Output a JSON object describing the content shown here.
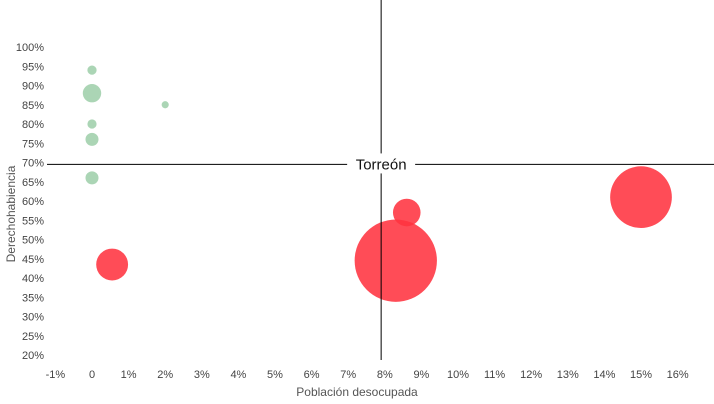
{
  "chart_data": {
    "type": "scatter",
    "title": "",
    "xlabel": "Población desocupada",
    "ylabel": "Derechohabiencia",
    "xlim": [
      -1,
      17
    ],
    "ylim": [
      20,
      100
    ],
    "x_ticks": [
      "-1%",
      "0",
      "1%",
      "2%",
      "3%",
      "4%",
      "5%",
      "6%",
      "7%",
      "8%",
      "9%",
      "10%",
      "11%",
      "12%",
      "13%",
      "14%",
      "15%",
      "16%"
    ],
    "y_ticks": [
      "20%",
      "25%",
      "30%",
      "35%",
      "40%",
      "45%",
      "50%",
      "55%",
      "60%",
      "65%",
      "70%",
      "75%",
      "80%",
      "85%",
      "90%",
      "95%",
      "100%"
    ],
    "reference_lines": {
      "x": 7.9,
      "y": 69.5,
      "label": "Torreón"
    },
    "series": [
      {
        "color": "#a6d3b1",
        "points": [
          {
            "x": 0.0,
            "y": 94,
            "size": 1
          },
          {
            "x": 0.0,
            "y": 88,
            "size": 4
          },
          {
            "x": 2.0,
            "y": 85,
            "size": 0.6
          },
          {
            "x": 0.0,
            "y": 80,
            "size": 1
          },
          {
            "x": 0.0,
            "y": 76,
            "size": 2
          },
          {
            "x": 0.0,
            "y": 66,
            "size": 2
          }
        ]
      },
      {
        "color": "#ff3340",
        "points": [
          {
            "x": 15.0,
            "y": 61,
            "size": 45
          },
          {
            "x": 8.6,
            "y": 57,
            "size": 9
          },
          {
            "x": 8.3,
            "y": 44.5,
            "size": 80
          },
          {
            "x": 0.55,
            "y": 43.5,
            "size": 12
          }
        ]
      }
    ]
  }
}
